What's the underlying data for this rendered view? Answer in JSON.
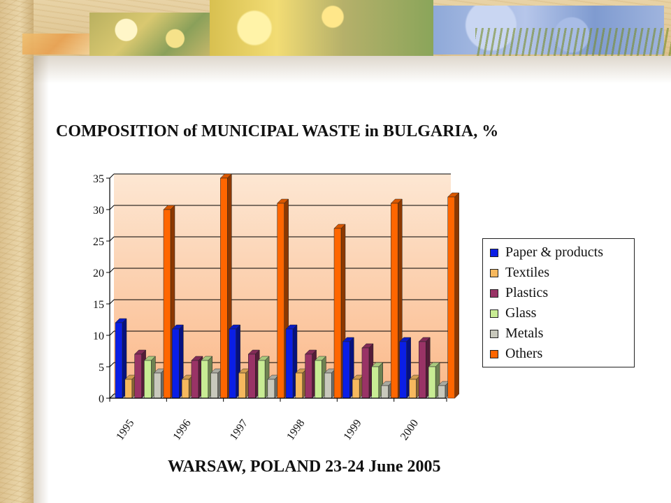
{
  "slide": {
    "title": "COMPOSITION of MUNICIPAL WASTE in BULGARIA, %",
    "footer": "WARSAW, POLAND 23-24 June 2005"
  },
  "colors": {
    "Paper & products": "#0a1ee6",
    "Textiles": "#f6b85e",
    "Plastics": "#993366",
    "Glass": "#c8ec94",
    "Metals": "#c8c8bc",
    "Others": "#ff6600",
    "plot_bg_top": "#fde7d3",
    "plot_bg_bottom": "#fbb98a"
  },
  "chart_data": {
    "type": "bar",
    "title": "COMPOSITION of MUNICIPAL WASTE in BULGARIA, %",
    "xlabel": "",
    "ylabel": "",
    "categories": [
      "1995",
      "1996",
      "1997",
      "1998",
      "1999",
      "2000"
    ],
    "series": [
      {
        "name": "Paper & products",
        "values": [
          12,
          11,
          11,
          11,
          9,
          9
        ]
      },
      {
        "name": "Textiles",
        "values": [
          3,
          3,
          4,
          4,
          3,
          3
        ]
      },
      {
        "name": "Plastics",
        "values": [
          7,
          6,
          7,
          7,
          8,
          9
        ]
      },
      {
        "name": "Glass",
        "values": [
          6,
          6,
          6,
          6,
          5,
          5
        ]
      },
      {
        "name": "Metals",
        "values": [
          4,
          4,
          3,
          4,
          2,
          2
        ]
      },
      {
        "name": "Others",
        "values": [
          30,
          35,
          31,
          27,
          31,
          32
        ]
      }
    ],
    "yticks": [
      "0",
      "5",
      "10",
      "15",
      "20",
      "25",
      "30",
      "35"
    ],
    "ylim": [
      0,
      35
    ],
    "grid": true,
    "legend_position": "right"
  }
}
